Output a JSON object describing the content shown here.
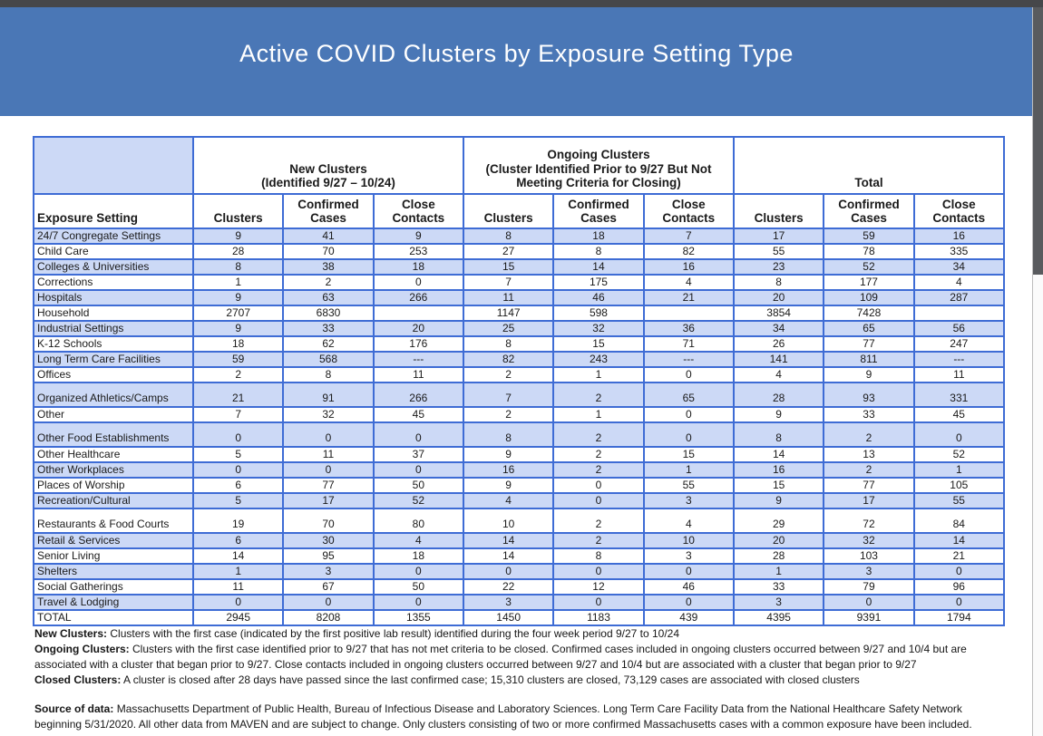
{
  "title": "Active COVID Clusters by Exposure Setting Type",
  "colors": {
    "banner_blue": "#4a77b6",
    "table_border_blue": "#3e6cd5",
    "row_shade_blue": "#ccd9f6",
    "top_bar_gray": "#46474a",
    "scroll_thumb_gray": "#595b5e"
  },
  "table": {
    "corner_header": "Exposure Setting",
    "groups": [
      {
        "line1": "New Clusters",
        "line2": "(Identified 9/27 – 10/24)"
      },
      {
        "line1": "Ongoing Clusters",
        "line2": "(Cluster Identified Prior to 9/27 But Not Meeting Criteria for Closing)"
      },
      {
        "line1": "Total",
        "line2": ""
      }
    ],
    "sub_headers": [
      "Clusters",
      "Confirmed Cases",
      "Close Contacts"
    ],
    "rows": [
      {
        "label": "24/7 Congregate Settings",
        "values": [
          "9",
          "41",
          "9",
          "8",
          "18",
          "7",
          "17",
          "59",
          "16"
        ]
      },
      {
        "label": "Child Care",
        "values": [
          "28",
          "70",
          "253",
          "27",
          "8",
          "82",
          "55",
          "78",
          "335"
        ]
      },
      {
        "label": "Colleges & Universities",
        "values": [
          "8",
          "38",
          "18",
          "15",
          "14",
          "16",
          "23",
          "52",
          "34"
        ]
      },
      {
        "label": "Corrections",
        "values": [
          "1",
          "2",
          "0",
          "7",
          "175",
          "4",
          "8",
          "177",
          "4"
        ]
      },
      {
        "label": "Hospitals",
        "values": [
          "9",
          "63",
          "266",
          "11",
          "46",
          "21",
          "20",
          "109",
          "287"
        ]
      },
      {
        "label": "Household",
        "values": [
          "2707",
          "6830",
          "",
          "1147",
          "598",
          "",
          "3854",
          "7428",
          ""
        ]
      },
      {
        "label": "Industrial Settings",
        "values": [
          "9",
          "33",
          "20",
          "25",
          "32",
          "36",
          "34",
          "65",
          "56"
        ]
      },
      {
        "label": "K-12 Schools",
        "values": [
          "18",
          "62",
          "176",
          "8",
          "15",
          "71",
          "26",
          "77",
          "247"
        ]
      },
      {
        "label": "Long Term Care Facilities",
        "values": [
          "59",
          "568",
          "---",
          "82",
          "243",
          "---",
          "141",
          "811",
          "---"
        ]
      },
      {
        "label": "Offices",
        "values": [
          "2",
          "8",
          "11",
          "2",
          "1",
          "0",
          "4",
          "9",
          "11"
        ]
      },
      {
        "label": "Organized Athletics/Camps",
        "tall": true,
        "values": [
          "21",
          "91",
          "266",
          "7",
          "2",
          "65",
          "28",
          "93",
          "331"
        ]
      },
      {
        "label": "Other",
        "values": [
          "7",
          "32",
          "45",
          "2",
          "1",
          "0",
          "9",
          "33",
          "45"
        ]
      },
      {
        "label": "Other Food Establishments",
        "tall": true,
        "values": [
          "0",
          "0",
          "0",
          "8",
          "2",
          "0",
          "8",
          "2",
          "0"
        ]
      },
      {
        "label": "Other Healthcare",
        "values": [
          "5",
          "11",
          "37",
          "9",
          "2",
          "15",
          "14",
          "13",
          "52"
        ]
      },
      {
        "label": "Other Workplaces",
        "values": [
          "0",
          "0",
          "0",
          "16",
          "2",
          "1",
          "16",
          "2",
          "1"
        ]
      },
      {
        "label": "Places of Worship",
        "values": [
          "6",
          "77",
          "50",
          "9",
          "0",
          "55",
          "15",
          "77",
          "105"
        ]
      },
      {
        "label": "Recreation/Cultural",
        "values": [
          "5",
          "17",
          "52",
          "4",
          "0",
          "3",
          "9",
          "17",
          "55"
        ]
      },
      {
        "label": "Restaurants & Food Courts",
        "tall": true,
        "values": [
          "19",
          "70",
          "80",
          "10",
          "2",
          "4",
          "29",
          "72",
          "84"
        ]
      },
      {
        "label": "Retail & Services",
        "values": [
          "6",
          "30",
          "4",
          "14",
          "2",
          "10",
          "20",
          "32",
          "14"
        ]
      },
      {
        "label": "Senior Living",
        "values": [
          "14",
          "95",
          "18",
          "14",
          "8",
          "3",
          "28",
          "103",
          "21"
        ]
      },
      {
        "label": "Shelters",
        "values": [
          "1",
          "3",
          "0",
          "0",
          "0",
          "0",
          "1",
          "3",
          "0"
        ]
      },
      {
        "label": "Social Gatherings",
        "values": [
          "11",
          "67",
          "50",
          "22",
          "12",
          "46",
          "33",
          "79",
          "96"
        ]
      },
      {
        "label": "Travel & Lodging",
        "values": [
          "0",
          "0",
          "0",
          "3",
          "0",
          "0",
          "3",
          "0",
          "0"
        ]
      },
      {
        "label": "TOTAL",
        "total": true,
        "values": [
          "2945",
          "8208",
          "1355",
          "1450",
          "1183",
          "439",
          "4395",
          "9391",
          "1794"
        ]
      }
    ]
  },
  "footnotes": [
    {
      "lead": "New Clusters:",
      "text": " Clusters with the first case (indicated by the first positive lab result) identified during the four week period 9/27 to 10/24",
      "gap_before": false
    },
    {
      "lead": "Ongoing Clusters:",
      "text": " Clusters with the first case identified prior to 9/27 that has not met criteria to be closed.  Confirmed cases included in ongoing clusters occurred between 9/27 and 10/4  but are associated with a cluster that began prior to 9/27. Close contacts included in ongoing clusters occurred between 9/27 and 10/4  but are associated with a cluster that began prior to 9/27",
      "gap_before": false
    },
    {
      "lead": "Closed Clusters:",
      "text": " A cluster is closed after 28 days have passed since the last confirmed case; 15,310 clusters are closed, 73,129 cases are associated with closed clusters",
      "gap_before": false
    },
    {
      "lead": "Source of data:",
      "text": " Massachusetts Department of Public Health, Bureau of Infectious Disease and Laboratory Sciences. Long Term Care Facility Data from the National Healthcare Safety Network beginning 5/31/2020.  All other data from MAVEN and are subject to change. Only clusters consisting of two or more confirmed Massachusetts cases with a common exposure have been included.",
      "gap_before": true
    }
  ]
}
